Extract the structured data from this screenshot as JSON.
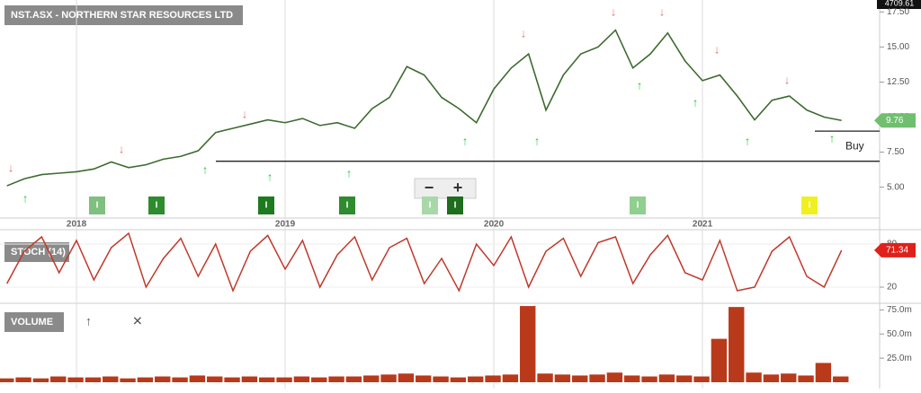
{
  "header": {
    "title": "NST.ASX - NORTHERN STAR RESOURCES LTD",
    "top_right_value": "4709.61"
  },
  "chart_data": {
    "type": "line",
    "categories": [
      null,
      null,
      null,
      null,
      "2018",
      null,
      null,
      null,
      null,
      null,
      null,
      null,
      null,
      null,
      null,
      null,
      "2019",
      null,
      null,
      null,
      null,
      null,
      null,
      null,
      null,
      null,
      null,
      null,
      "2020",
      null,
      null,
      null,
      null,
      null,
      null,
      null,
      null,
      null,
      null,
      null,
      "2021",
      null,
      null,
      null,
      null,
      null,
      null,
      null,
      null
    ],
    "values": [
      5.1,
      5.6,
      5.9,
      6.0,
      6.1,
      6.3,
      6.8,
      6.4,
      6.6,
      7.0,
      7.2,
      7.6,
      8.9,
      9.2,
      9.5,
      9.8,
      9.6,
      9.9,
      9.4,
      9.6,
      9.2,
      10.6,
      11.4,
      13.6,
      13.0,
      11.4,
      10.6,
      9.6,
      12.0,
      13.5,
      14.5,
      10.5,
      13.0,
      14.5,
      15.0,
      16.2,
      13.5,
      14.5,
      16.0,
      14.0,
      12.6,
      13.0,
      11.5,
      9.8,
      11.2,
      11.5,
      10.5,
      10.0,
      9.76
    ],
    "color": "#3d6b2f",
    "last_price_label": "9.76",
    "ylim": [
      2.8,
      18.35
    ],
    "yticks": [
      {
        "value": 5,
        "label": "5.00"
      },
      {
        "value": 7.5,
        "label": "7.50"
      },
      {
        "value": 10,
        "label": "10.00"
      },
      {
        "value": 12.5,
        "label": "12.50"
      },
      {
        "value": 15,
        "label": "15.00"
      },
      {
        "value": 17.5,
        "label": "17.50"
      }
    ],
    "support_level": 6.85,
    "buy": {
      "text": "Buy",
      "value": 9.0
    },
    "markers": [
      "I",
      "I",
      "I",
      "I",
      "I",
      "I",
      "I",
      "I"
    ]
  },
  "stoch": {
    "title": "STOCH (14)",
    "color": "#c0392b",
    "last_label": "71.34",
    "values": [
      25,
      70,
      90,
      40,
      85,
      30,
      75,
      95,
      20,
      60,
      88,
      35,
      80,
      15,
      70,
      92,
      45,
      85,
      20,
      65,
      90,
      30,
      75,
      88,
      25,
      60,
      15,
      80,
      50,
      90,
      20,
      70,
      88,
      35,
      82,
      90,
      25,
      65,
      92,
      40,
      30,
      85,
      15,
      20,
      70,
      90,
      35,
      20,
      71.34
    ],
    "ylim": [
      0,
      97.5
    ],
    "yticks": [
      20,
      80
    ]
  },
  "volume": {
    "title": "VOLUME",
    "color": "#b83a1b",
    "values": [
      4,
      5,
      4,
      6,
      5,
      5,
      6,
      4,
      5,
      6,
      5,
      7,
      6,
      5,
      6,
      5,
      5,
      6,
      5,
      6,
      6,
      7,
      8,
      9,
      7,
      6,
      5,
      6,
      7,
      8,
      79,
      9,
      8,
      7,
      8,
      10,
      7,
      6,
      8,
      7,
      6,
      45,
      78,
      10,
      8,
      9,
      7,
      20,
      6
    ],
    "ylim": [
      0,
      80
    ],
    "yticks": [
      {
        "value": 25,
        "label": "25.0m"
      },
      {
        "value": 50,
        "label": "50.0m"
      },
      {
        "value": 75,
        "label": "75.0m"
      }
    ]
  },
  "zoom": {
    "minus": "−",
    "plus": "+"
  }
}
